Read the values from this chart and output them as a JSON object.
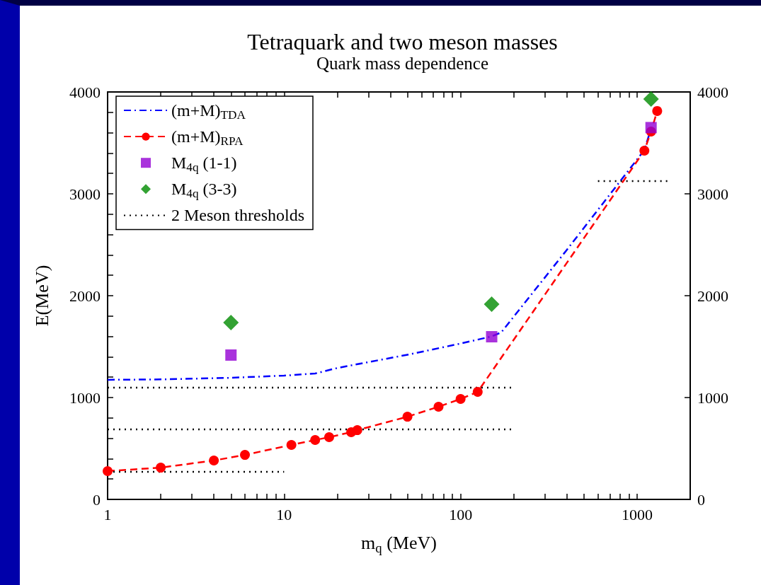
{
  "chart_data": {
    "type": "line",
    "title": "Tetraquark and two meson masses",
    "subtitle": "Quark mass dependence",
    "xlabel": "m$_{q}$ (MeV)",
    "ylabel": "E(MeV)",
    "log": "x",
    "xlim": [
      1,
      2000
    ],
    "ylim": [
      0,
      4000
    ],
    "y2lim": [
      0,
      4000
    ],
    "xticks": [
      1,
      {
        "value": 2,
        "label": null
      },
      {
        "value": 3,
        "label": null
      },
      {
        "value": 4,
        "label": null
      },
      {
        "value": 5,
        "label": null
      },
      {
        "value": 6,
        "label": null
      },
      {
        "value": 7,
        "label": null
      },
      {
        "value": 8,
        "label": null
      },
      {
        "value": 9,
        "label": null
      },
      10,
      {
        "value": 20,
        "label": null
      },
      {
        "value": 30,
        "label": null
      },
      {
        "value": 40,
        "label": null
      },
      {
        "value": 50,
        "label": null
      },
      {
        "value": 60,
        "label": null
      },
      {
        "value": 70,
        "label": null
      },
      {
        "value": 80,
        "label": null
      },
      {
        "value": 90,
        "label": null
      },
      100,
      {
        "value": 200,
        "label": null
      },
      {
        "value": 300,
        "label": null
      },
      {
        "value": 400,
        "label": null
      },
      {
        "value": 500,
        "label": null
      },
      {
        "value": 600,
        "label": null
      },
      {
        "value": 700,
        "label": null
      },
      {
        "value": 800,
        "label": null
      },
      {
        "value": 900,
        "label": null
      },
      1000,
      {
        "value": 2000,
        "label": null
      }
    ],
    "yticks": [
      0,
      {
        "value": 200,
        "label": null
      },
      {
        "value": 400,
        "label": null
      },
      {
        "value": 600,
        "label": null
      },
      {
        "value": 800,
        "label": null
      },
      1000,
      {
        "value": 1200,
        "label": null
      },
      {
        "value": 1400,
        "label": null
      },
      {
        "value": 1600,
        "label": null
      },
      {
        "value": 1800,
        "label": null
      },
      2000,
      {
        "value": 2200,
        "label": null
      },
      {
        "value": 2400,
        "label": null
      },
      {
        "value": 2600,
        "label": null
      },
      {
        "value": 2800,
        "label": null
      },
      3000,
      {
        "value": 3200,
        "label": null
      },
      {
        "value": 3400,
        "label": null
      },
      {
        "value": 3600,
        "label": null
      },
      {
        "value": 3800,
        "label": null
      },
      4000
    ],
    "y2ticks": [
      0,
      1000,
      2000,
      3000,
      4000
    ],
    "legend": "top left",
    "grid": false,
    "series": [
      {
        "name": "(m+M)$_{TDA}$",
        "color": "#0000ff",
        "line_style": "dashdot",
        "marker": "none",
        "x": [
          1,
          2,
          5,
          10,
          15,
          20,
          50,
          100,
          150,
          170,
          400,
          1100,
          1200
        ],
        "values": [
          1174,
          1178,
          1194,
          1215,
          1236,
          1290,
          1420,
          1530,
          1600,
          1640,
          2450,
          3430,
          3640
        ]
      },
      {
        "name": "(m+M)$_{RPA}$",
        "color": "#ff0000",
        "line_style": "dashed",
        "marker": "circle",
        "x": [
          1,
          2,
          4,
          6,
          11,
          15,
          18,
          24,
          26,
          50,
          75,
          100,
          125,
          1100,
          1200,
          1300
        ],
        "values": [
          278,
          312,
          382,
          437,
          535,
          583,
          611,
          660,
          680,
          812,
          910,
          986,
          1056,
          3424,
          3611,
          3813
        ]
      },
      {
        "name": "M$_{4q}$ (1-1)",
        "type": "scatter",
        "color": "#9400d3",
        "marker": "square",
        "x": [
          5,
          150,
          1200
        ],
        "values": [
          1417,
          1597,
          3650
        ]
      },
      {
        "name": "M$_{4q}$ (3-3)",
        "type": "scatter",
        "color": "#008b00",
        "marker": "diamond",
        "x": [
          5,
          150,
          1200
        ],
        "values": [
          1736,
          1917,
          3931
        ]
      },
      {
        "name": "2 Meson thresholds",
        "color": "#000000",
        "line_style": "dotted",
        "marker": "none",
        "x": [
          1,
          10
        ],
        "values": [
          271,
          271
        ]
      },
      {
        "color": "#000000",
        "line_style": "dotted",
        "marker": "none",
        "x": [
          1,
          200
        ],
        "values": [
          688,
          688
        ]
      },
      {
        "color": "#000000",
        "line_style": "dotted",
        "marker": "none",
        "x": [
          1,
          200
        ],
        "values": [
          1097,
          1097
        ]
      },
      {
        "color": "#000000",
        "line_style": "dotted",
        "marker": "none",
        "x": [
          600,
          1500
        ],
        "values": [
          3125,
          3125
        ]
      }
    ]
  }
}
